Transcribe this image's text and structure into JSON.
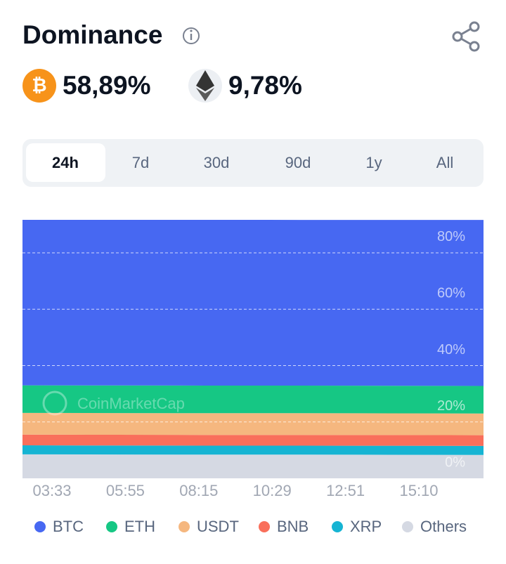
{
  "header": {
    "title": "Dominance",
    "btc_value": "58,89%",
    "eth_value": "9,78%"
  },
  "tabs": {
    "items": [
      "24h",
      "7d",
      "30d",
      "90d",
      "1y",
      "All"
    ],
    "active": 0
  },
  "watermark": "CoinMarketCap",
  "chart_data": {
    "type": "stacked-area",
    "categories": [
      "03:33",
      "05:55",
      "08:15",
      "10:29",
      "12:51",
      "15:10"
    ],
    "series": [
      {
        "name": "BTC",
        "color": "#4768f2",
        "values": [
          58.7,
          58.75,
          58.8,
          58.8,
          58.85,
          58.9
        ]
      },
      {
        "name": "ETH",
        "color": "#16c784",
        "values": [
          9.8,
          9.8,
          9.8,
          9.78,
          9.78,
          9.78
        ]
      },
      {
        "name": "USDT",
        "color": "#f5b77f",
        "values": [
          7.7,
          7.7,
          7.7,
          7.7,
          7.7,
          7.7
        ]
      },
      {
        "name": "BNB",
        "color": "#f96f5b",
        "values": [
          3.8,
          3.8,
          3.8,
          3.8,
          3.8,
          3.8
        ]
      },
      {
        "name": "XRP",
        "color": "#16b4d3",
        "values": [
          3.2,
          3.2,
          3.2,
          3.2,
          3.2,
          3.2
        ]
      },
      {
        "name": "Others",
        "color": "#d5d9e3",
        "values": [
          8.5,
          8.45,
          8.4,
          8.4,
          8.35,
          8.3
        ]
      }
    ],
    "ylim": [
      0,
      91.7
    ],
    "yticks": [
      {
        "value": 0,
        "label": "0%"
      },
      {
        "value": 20,
        "label": "20%"
      },
      {
        "value": 40,
        "label": "40%"
      },
      {
        "value": 60,
        "label": "60%"
      },
      {
        "value": 80,
        "label": "80%"
      }
    ],
    "grid": true
  }
}
